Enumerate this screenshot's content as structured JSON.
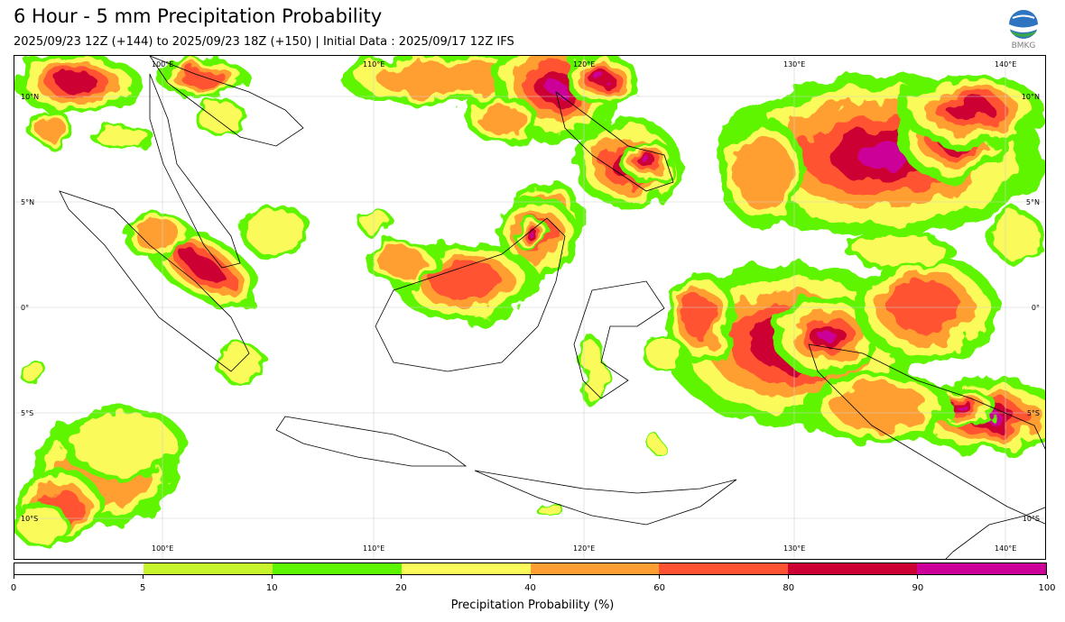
{
  "title": "6 Hour - 5 mm Precipitation Probability",
  "subtitle": "2025/09/23 12Z (+144) to 2025/09/23 18Z (+150) | Initial Data : 2025/09/17 12Z IFS",
  "logo": {
    "icon": "bmkg-logo",
    "text": "BMKG"
  },
  "map": {
    "lon_labels": [
      "100°E",
      "110°E",
      "120°E",
      "130°E",
      "140°E"
    ],
    "lat_labels": [
      "10°N",
      "5°N",
      "0°",
      "5°S",
      "10°S"
    ]
  },
  "colorbar": {
    "label": "Precipitation Probability (%)",
    "ticks": [
      "0",
      "5",
      "10",
      "20",
      "40",
      "60",
      "80",
      "90",
      "100"
    ],
    "colors": [
      "#ffffff",
      "#c6f52d",
      "#5ef500",
      "#fafa5a",
      "#ff9f33",
      "#ff5233",
      "#cc0033",
      "#cc0099"
    ]
  }
}
